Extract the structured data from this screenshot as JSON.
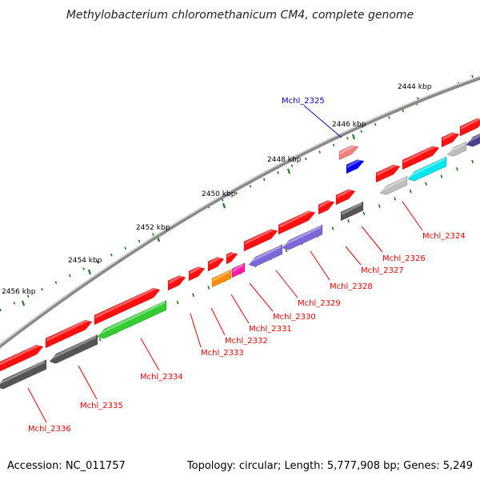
{
  "title": "Methylobacterium chloromethanicum CM4, complete genome",
  "accession": "Accession: NC_011757",
  "topology": "Topology: circular; Length: 5,777,908 bp; Genes: 5,249",
  "colors": {
    "background": "#ffffff",
    "backbone_outer": "#8a8a8a",
    "backbone_inner": "#d6d6d6",
    "tick": "#1b7f1b",
    "label_red": "#ff0000",
    "label_blue": "#0000cc",
    "gene_red": "#ff1010",
    "gene_blue": "#0000ff",
    "gene_pink": "#f08080",
    "gene_grey_dark": "#555555",
    "gene_grey_light": "#bdbdbd",
    "gene_purple": "#7b68d6",
    "gene_darkpurple": "#4b3f8c",
    "gene_green": "#33cc33",
    "gene_cyan": "#00e5ee",
    "gene_orange": "#ff8c00",
    "gene_magenta": "#ff1aa8"
  },
  "scale_labels": [
    "2444 kbp",
    "2446 kbp",
    "2448 kbp",
    "2450 kbp",
    "2452 kbp",
    "2454 kbp",
    "2456 kbp"
  ],
  "gene_labels": [
    {
      "text": "Mchl_2325",
      "color": "blue"
    },
    {
      "text": "Mchl_2324",
      "color": "red"
    },
    {
      "text": "Mchl_2326",
      "color": "red"
    },
    {
      "text": "Mchl_2327",
      "color": "red"
    },
    {
      "text": "Mchl_2328",
      "color": "red"
    },
    {
      "text": "Mchl_2329",
      "color": "red"
    },
    {
      "text": "Mchl_2330",
      "color": "red"
    },
    {
      "text": "Mchl_2331",
      "color": "red"
    },
    {
      "text": "Mchl_2332",
      "color": "red"
    },
    {
      "text": "Mchl_2333",
      "color": "red"
    },
    {
      "text": "Mchl_2334",
      "color": "red"
    },
    {
      "text": "Mchl_2335",
      "color": "red"
    },
    {
      "text": "Mchl_2336",
      "color": "red"
    }
  ]
}
